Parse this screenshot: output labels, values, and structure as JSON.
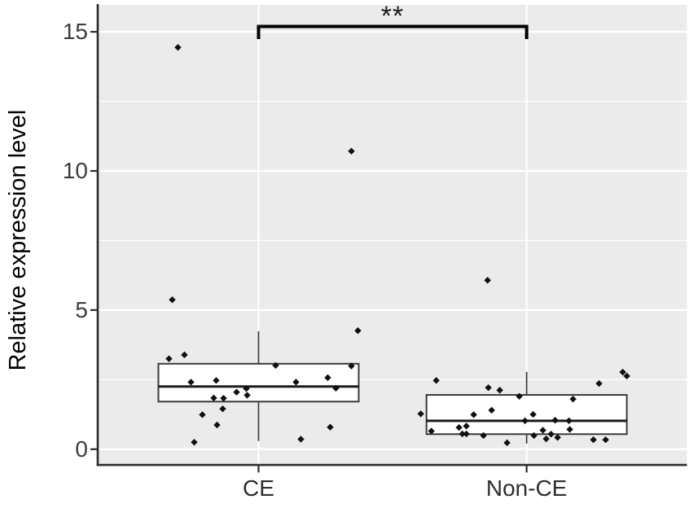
{
  "figure": {
    "background": "#ffffff",
    "panel_background": "#ebebeb",
    "grid_major_color": "#ffffff",
    "grid_minor_color": "#ffffff",
    "axis_color": "#2b2b2b",
    "box_fill": "#ffffff",
    "box_stroke": "#3a3a3a",
    "median_color": "#1a1a1a",
    "point_color": "#101010",
    "bracket_color": "#000000"
  },
  "chart_data": {
    "type": "boxplot",
    "title": "",
    "xlabel": "",
    "ylabel": "Relative expression level",
    "categories": [
      "CE",
      "Non-CE"
    ],
    "yticks": [
      0,
      5,
      10,
      15
    ],
    "yticks_minor": [
      2.5,
      7.5,
      12.5
    ],
    "ylim": [
      -0.55,
      16.0
    ],
    "grid": true,
    "legend": "none",
    "significance": {
      "label": "**",
      "groups": [
        "CE",
        "Non-CE"
      ],
      "bar_y_value": 15.2
    },
    "series": [
      {
        "name": "CE",
        "box": {
          "whisker_low": 0.29,
          "q1": 1.71,
          "median": 2.25,
          "q3": 3.07,
          "whisker_high": 4.24
        },
        "points": [
          [
            -99,
            14.44
          ],
          [
            114,
            10.71
          ],
          [
            -106,
            5.37
          ],
          [
            122,
            4.26
          ],
          [
            -91,
            3.39
          ],
          [
            -110,
            3.25
          ],
          [
            21,
            3.01
          ],
          [
            114,
            2.99
          ],
          [
            85,
            2.57
          ],
          [
            -52,
            2.47
          ],
          [
            -83,
            2.41
          ],
          [
            46,
            2.41
          ],
          [
            95,
            2.19
          ],
          [
            -15,
            2.18
          ],
          [
            -27,
            2.05
          ],
          [
            -14,
            1.94
          ],
          [
            -55,
            1.84
          ],
          [
            -43,
            1.83
          ],
          [
            -44,
            1.45
          ],
          [
            -69,
            1.24
          ],
          [
            -51,
            0.87
          ],
          [
            88,
            0.79
          ],
          [
            52,
            0.36
          ],
          [
            -79,
            0.25
          ]
        ]
      },
      {
        "name": "Non-CE",
        "box": {
          "whisker_low": 0.2,
          "q1": 0.54,
          "median": 1.02,
          "q3": 1.95,
          "whisker_high": 2.78
        },
        "points": [
          [
            -48,
            6.07
          ],
          [
            118,
            2.77
          ],
          [
            123,
            2.63
          ],
          [
            -111,
            2.47
          ],
          [
            89,
            2.36
          ],
          [
            -47,
            2.21
          ],
          [
            -33,
            2.12
          ],
          [
            -9,
            1.9
          ],
          [
            57,
            1.8
          ],
          [
            -43,
            1.4
          ],
          [
            -130,
            1.27
          ],
          [
            8,
            1.25
          ],
          [
            -65,
            1.24
          ],
          [
            35,
            1.04
          ],
          [
            -2,
            1.02
          ],
          [
            52,
            1.02
          ],
          [
            -74,
            0.83
          ],
          [
            -83,
            0.78
          ],
          [
            53,
            0.71
          ],
          [
            20,
            0.68
          ],
          [
            -117,
            0.65
          ],
          [
            -79,
            0.55
          ],
          [
            -74,
            0.55
          ],
          [
            30,
            0.54
          ],
          [
            -53,
            0.49
          ],
          [
            9,
            0.49
          ],
          [
            38,
            0.42
          ],
          [
            24,
            0.37
          ],
          [
            82,
            0.34
          ],
          [
            97,
            0.34
          ],
          [
            -24,
            0.23
          ]
        ]
      }
    ]
  }
}
